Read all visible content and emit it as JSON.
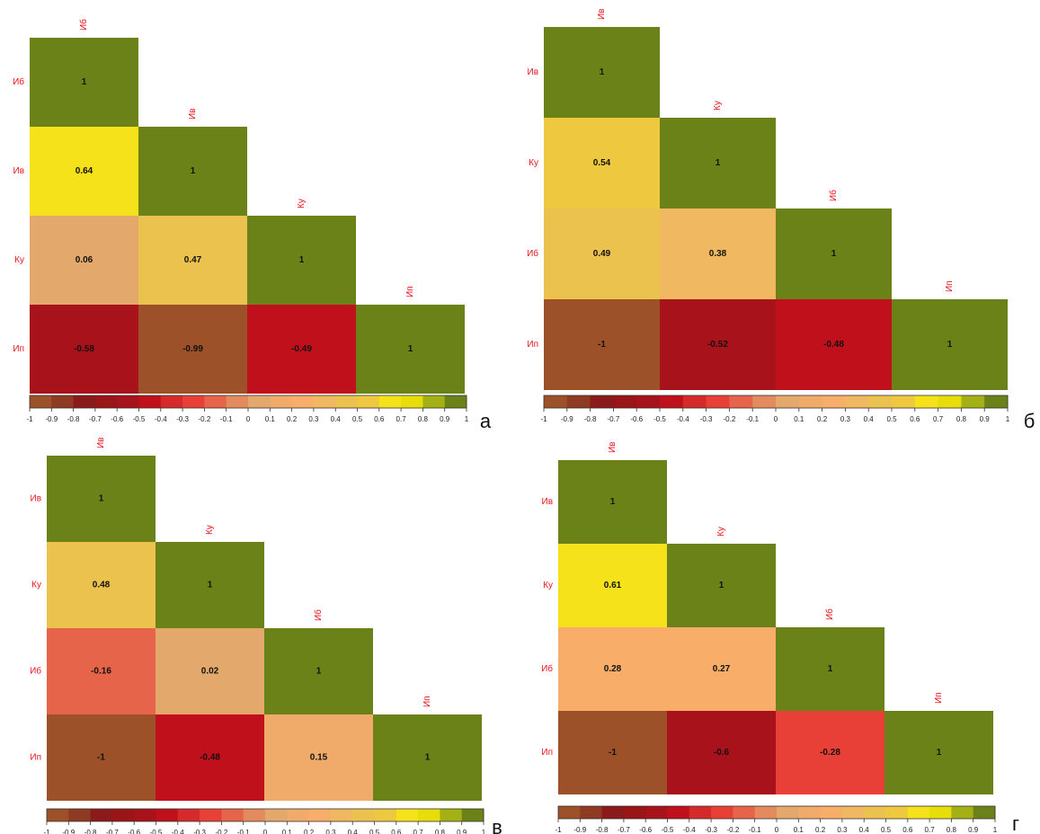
{
  "chart_data": [
    {
      "type": "heatmap",
      "panel_label": "а",
      "labels": [
        "Иб",
        "Ив",
        "Ку",
        "Ип"
      ],
      "values": [
        [
          1
        ],
        [
          0.64,
          1
        ],
        [
          0.06,
          0.47,
          1
        ],
        [
          -0.58,
          -0.99,
          -0.49,
          1
        ]
      ],
      "zlim": [
        -1,
        1
      ],
      "zticks": [
        -1,
        -0.9,
        -0.8,
        -0.7,
        -0.6,
        -0.5,
        -0.4,
        -0.3,
        -0.2,
        -0.1,
        0,
        0.1,
        0.2,
        0.3,
        0.4,
        0.5,
        0.6,
        0.7,
        0.8,
        0.9,
        1
      ],
      "colors": [
        "#9c5128",
        "#8f3a22",
        "#8b1a1a",
        "#9a1515",
        "#a8121a",
        "#c0101c",
        "#d52a2a",
        "#e84037",
        "#e6654a",
        "#e38a5e",
        "#e3a86b",
        "#f0ab6a",
        "#f8ae68",
        "#f1b862",
        "#ecc24f",
        "#eec83f",
        "#f5e21b",
        "#e6dd0a",
        "#a3b114",
        "#6a8218"
      ]
    },
    {
      "type": "heatmap",
      "panel_label": "б",
      "labels": [
        "Ив",
        "Ку",
        "Иб",
        "Ип"
      ],
      "values": [
        [
          1
        ],
        [
          0.54,
          1
        ],
        [
          0.49,
          0.38,
          1
        ],
        [
          -1,
          -0.52,
          -0.48,
          1
        ]
      ],
      "zlim": [
        -1,
        1
      ],
      "zticks": [
        -1,
        -0.9,
        -0.8,
        -0.7,
        -0.6,
        -0.5,
        -0.4,
        -0.3,
        -0.2,
        -0.1,
        0,
        0.1,
        0.2,
        0.3,
        0.4,
        0.5,
        0.6,
        0.7,
        0.8,
        0.9,
        1
      ],
      "colors": [
        "#9c5128",
        "#8f3a22",
        "#8b1a1a",
        "#9a1515",
        "#a8121a",
        "#c0101c",
        "#d52a2a",
        "#e84037",
        "#e6654a",
        "#e38a5e",
        "#e3a86b",
        "#f0ab6a",
        "#f8ae68",
        "#f1b862",
        "#ecc24f",
        "#eec83f",
        "#f5e21b",
        "#e6dd0a",
        "#a3b114",
        "#6a8218"
      ]
    },
    {
      "type": "heatmap",
      "panel_label": "в",
      "labels": [
        "Ив",
        "Ку",
        "Иб",
        "Ип"
      ],
      "values": [
        [
          1
        ],
        [
          0.48,
          1
        ],
        [
          -0.16,
          0.02,
          1
        ],
        [
          -1,
          -0.48,
          0.15,
          1
        ]
      ],
      "zlim": [
        -1,
        1
      ],
      "zticks": [
        -1,
        -0.9,
        -0.8,
        -0.7,
        -0.6,
        -0.5,
        -0.4,
        -0.3,
        -0.2,
        -0.1,
        0,
        0.1,
        0.2,
        0.3,
        0.4,
        0.5,
        0.6,
        0.7,
        0.8,
        0.9,
        1
      ],
      "colors": [
        "#9c5128",
        "#8f3a22",
        "#8b1a1a",
        "#9a1515",
        "#a8121a",
        "#c0101c",
        "#d52a2a",
        "#e84037",
        "#e6654a",
        "#e38a5e",
        "#e3a86b",
        "#f0ab6a",
        "#f8ae68",
        "#f1b862",
        "#ecc24f",
        "#eec83f",
        "#f5e21b",
        "#e6dd0a",
        "#a3b114",
        "#6a8218"
      ]
    },
    {
      "type": "heatmap",
      "panel_label": "г",
      "labels": [
        "Ив",
        "Ку",
        "Иб",
        "Ип"
      ],
      "values": [
        [
          1
        ],
        [
          0.61,
          1
        ],
        [
          0.28,
          0.27,
          1
        ],
        [
          -1,
          -0.6,
          -0.28,
          1
        ]
      ],
      "zlim": [
        -1,
        1
      ],
      "zticks": [
        -1,
        -0.9,
        -0.8,
        -0.7,
        -0.6,
        -0.5,
        -0.4,
        -0.3,
        -0.2,
        -0.1,
        0,
        0.1,
        0.2,
        0.3,
        0.4,
        0.5,
        0.6,
        0.7,
        0.8,
        0.9,
        1
      ],
      "colors": [
        "#9c5128",
        "#8f3a22",
        "#8b1a1a",
        "#9a1515",
        "#a8121a",
        "#c0101c",
        "#d52a2a",
        "#e84037",
        "#e6654a",
        "#e38a5e",
        "#e3a86b",
        "#f0ab6a",
        "#f8ae68",
        "#f1b862",
        "#ecc24f",
        "#eec83f",
        "#f5e21b",
        "#e6dd0a",
        "#a3b114",
        "#6a8218"
      ]
    }
  ]
}
